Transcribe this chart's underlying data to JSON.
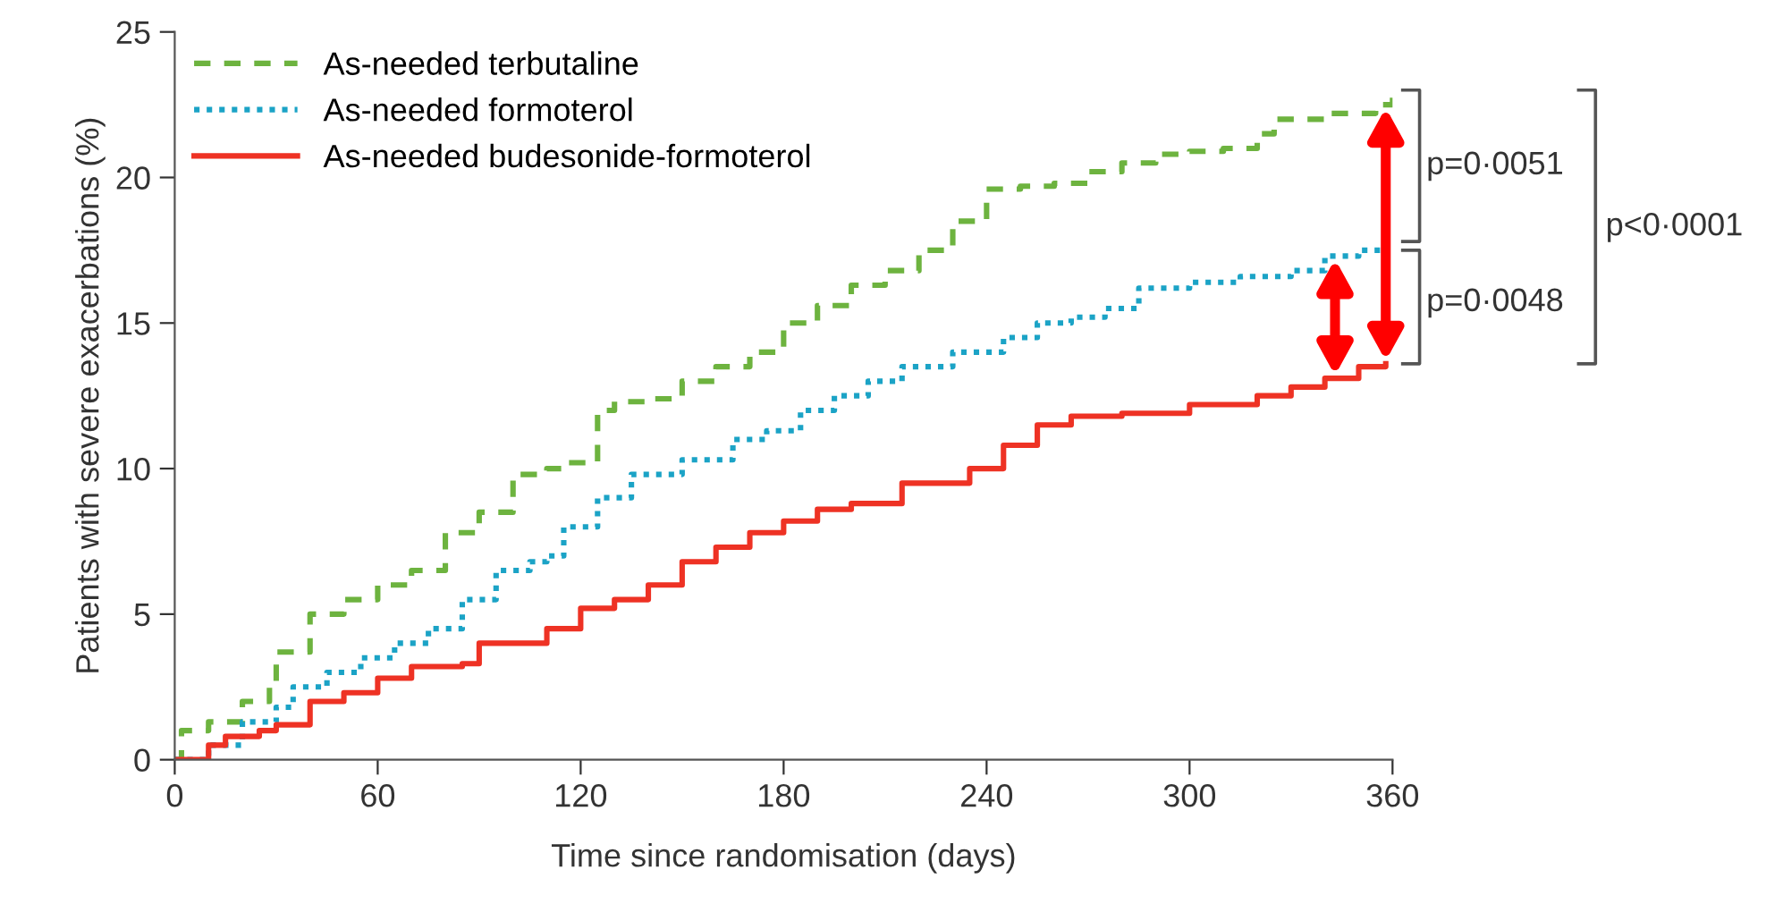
{
  "chart_data": {
    "type": "step",
    "xlabel": "Time since randomisation (days)",
    "ylabel": "Patients with severe exacerbations (%)",
    "xlim": [
      0,
      360
    ],
    "xticks": [
      0,
      60,
      120,
      180,
      240,
      300,
      360
    ],
    "ylim": [
      0,
      25
    ],
    "yticks": [
      0,
      5,
      10,
      15,
      20,
      25
    ],
    "grid": false,
    "legend": "top left",
    "series": [
      {
        "name": "As-needed terbutaline",
        "color": "#6db33f",
        "line_style": "dashed",
        "x": [
          0,
          2,
          10,
          20,
          28,
          30,
          40,
          50,
          60,
          70,
          80,
          90,
          100,
          110,
          115,
          125,
          130,
          140,
          150,
          160,
          170,
          180,
          190,
          200,
          210,
          220,
          230,
          240,
          250,
          260,
          270,
          280,
          290,
          300,
          310,
          320,
          325,
          340,
          355,
          360
        ],
        "values": [
          0,
          1.0,
          1.3,
          2.0,
          2.5,
          3.7,
          5.0,
          5.5,
          6.0,
          6.5,
          7.8,
          8.5,
          9.8,
          10.0,
          10.2,
          12.0,
          12.3,
          12.4,
          13.0,
          13.5,
          14.0,
          15.0,
          15.6,
          16.3,
          16.8,
          17.5,
          18.5,
          19.6,
          19.7,
          19.8,
          20.2,
          20.5,
          20.8,
          20.9,
          21.0,
          21.5,
          22.0,
          22.2,
          22.5,
          23.0
        ]
      },
      {
        "name": "As-needed formoterol",
        "color": "#1ba3c6",
        "line_style": "dotted",
        "x": [
          0,
          10,
          20,
          30,
          35,
          45,
          55,
          65,
          75,
          85,
          95,
          105,
          110,
          115,
          125,
          135,
          150,
          165,
          175,
          185,
          195,
          205,
          215,
          230,
          245,
          255,
          265,
          275,
          285,
          300,
          315,
          330,
          340,
          350,
          358
        ],
        "values": [
          0,
          0.5,
          1.3,
          1.8,
          2.5,
          3.0,
          3.5,
          4.0,
          4.5,
          5.5,
          6.5,
          6.8,
          7.0,
          8.0,
          9.0,
          9.8,
          10.3,
          11.0,
          11.3,
          12.0,
          12.5,
          13.0,
          13.5,
          14.0,
          14.5,
          15.0,
          15.2,
          15.5,
          16.2,
          16.4,
          16.6,
          16.8,
          17.3,
          17.5,
          17.8
        ]
      },
      {
        "name": "As-needed budesonide-formoterol",
        "color": "#ee3224",
        "line_style": "solid",
        "x": [
          0,
          5,
          10,
          15,
          25,
          30,
          40,
          50,
          60,
          70,
          85,
          90,
          100,
          110,
          120,
          130,
          140,
          150,
          160,
          170,
          180,
          190,
          200,
          215,
          225,
          235,
          245,
          255,
          265,
          280,
          300,
          320,
          330,
          340,
          350,
          358
        ],
        "values": [
          0,
          0,
          0.5,
          0.8,
          1.0,
          1.2,
          2.0,
          2.3,
          2.8,
          3.2,
          3.3,
          4.0,
          4.0,
          4.5,
          5.2,
          5.5,
          6.0,
          6.8,
          7.3,
          7.8,
          8.2,
          8.6,
          8.8,
          9.5,
          9.5,
          10.0,
          10.8,
          11.5,
          11.8,
          11.9,
          12.2,
          12.5,
          12.8,
          13.1,
          13.5,
          13.6
        ]
      }
    ],
    "annotations": [
      "p=0·0051",
      "p=0·0048",
      "p<0·0001"
    ]
  }
}
